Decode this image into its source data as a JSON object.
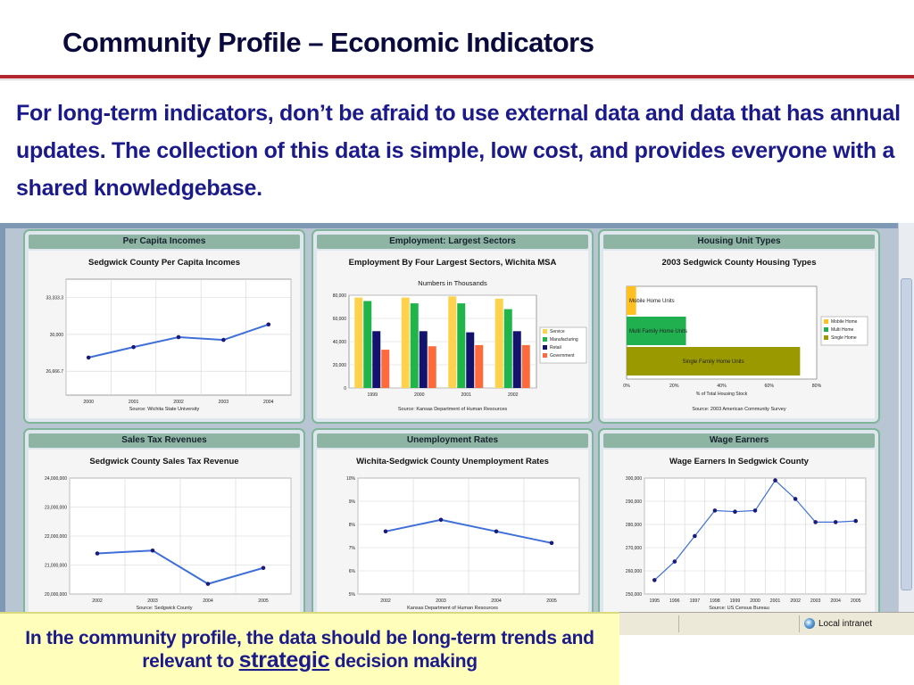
{
  "slide": {
    "title": "Community Profile – Economic Indicators",
    "intro": "For long-term indicators, don’t be afraid to use external data and data that has annual updates. The collection of this data is simple, low cost, and provides everyone with a shared knowledgebase.",
    "note_part1": "In the community profile, the data should be long-term trends and relevant to",
    "note_strategic": "strategic",
    "note_part2": "decision making"
  },
  "browser": {
    "status_zone": "Local intranet"
  },
  "colors": {
    "accent_rule": "#b3262e",
    "intro_text": "#1b1a8a",
    "panel_header": "#8eb4a4",
    "line_series": "#3f6fd8",
    "marker": "#1a1a7a",
    "service": "#ffd24d",
    "manufacturing": "#1fb54a",
    "retail": "#13136e",
    "government": "#ff6a3d",
    "housing_mobile": "#ffc020",
    "housing_multi": "#20b050",
    "housing_single": "#9a9a00"
  },
  "chart_data": [
    {
      "panel": "Per Capita Incomes",
      "title": "Sedgwick County Per Capita Incomes",
      "type": "line",
      "x": [
        "2000",
        "2001",
        "2002",
        "2003",
        "2004"
      ],
      "y": [
        27900,
        28850,
        29750,
        29500,
        30900
      ],
      "yticks": [
        26666.7,
        30000,
        33333.3
      ],
      "ytick_labels": [
        "26,666.7",
        "30,000",
        "33,333.3"
      ],
      "ylim": [
        24500,
        35000
      ],
      "source": "Source: Wichita State University"
    },
    {
      "panel": "Employment: Largest Sectors",
      "title": "Employment By Four Largest Sectors, Wichita MSA",
      "subtitle": "Numbers in Thousands",
      "type": "bar",
      "categories": [
        "1999",
        "2000",
        "2001",
        "2002"
      ],
      "series": [
        {
          "name": "Service",
          "values": [
            78,
            78,
            79,
            77
          ]
        },
        {
          "name": "Manufacturing",
          "values": [
            75,
            73,
            73,
            68
          ]
        },
        {
          "name": "Retail",
          "values": [
            49,
            49,
            48,
            49
          ]
        },
        {
          "name": "Government",
          "values": [
            33,
            36,
            37,
            37
          ]
        }
      ],
      "yticks": [
        0,
        20000,
        40000,
        60000,
        80000
      ],
      "ytick_labels": [
        "0",
        "20,000",
        "40,000",
        "60,000",
        "80,000"
      ],
      "ylim": [
        0,
        80
      ],
      "legend": "right",
      "source": "Source: Kansas Department of Human Resources"
    },
    {
      "panel": "Housing Unit Types",
      "title": "2003 Sedgwick County Housing Types",
      "type": "bar",
      "orientation": "horizontal",
      "categories": [
        "Mobile Home Units",
        "Multi Family Home Units",
        "Single Family Home Units"
      ],
      "values": [
        4,
        25,
        73
      ],
      "xticks": [
        "0%",
        "20%",
        "40%",
        "60%",
        "80%"
      ],
      "xlim": [
        0,
        80
      ],
      "xlabel": "% of Total Housing Stock",
      "legend_entries": [
        "Mobile Home",
        "Multi Home",
        "Single Home"
      ],
      "legend": "right",
      "source": "Source: 2003 American Community Survey"
    },
    {
      "panel": "Sales Tax Revenues",
      "title": "Sedgwick County Sales Tax Revenue",
      "type": "line",
      "x": [
        "2002",
        "2003",
        "2004",
        "2005"
      ],
      "y": [
        21400000,
        21500000,
        20350000,
        20900000
      ],
      "yticks": [
        20000000,
        21000000,
        22000000,
        23000000,
        24000000
      ],
      "ytick_labels": [
        "20,000,000",
        "21,000,000",
        "22,000,000",
        "23,000,000",
        "24,000,000"
      ],
      "ylim": [
        20000000,
        24000000
      ],
      "source": "Source: Sedgwick County"
    },
    {
      "panel": "Unemployment Rates",
      "title": "Wichita-Sedgwick County Unemployment Rates",
      "type": "line",
      "x": [
        "2002",
        "2003",
        "2004",
        "2005"
      ],
      "y": [
        7.7,
        8.2,
        7.7,
        7.2
      ],
      "yticks": [
        5,
        6,
        7,
        8,
        9,
        10
      ],
      "ytick_labels": [
        "5%",
        "6%",
        "7%",
        "8%",
        "9%",
        "10%"
      ],
      "ylim": [
        5,
        10
      ],
      "source": "Kansas Department of Human Resources"
    },
    {
      "panel": "Wage Earners",
      "title": "Wage Earners In Sedgwick County",
      "type": "line",
      "x": [
        "1995",
        "1996",
        "1997",
        "1998",
        "1999",
        "2000",
        "2001",
        "2002",
        "2003",
        "2004",
        "2005"
      ],
      "y": [
        256000,
        264000,
        275000,
        286000,
        285500,
        286000,
        299000,
        291000,
        281000,
        281000,
        281500
      ],
      "yticks": [
        250000,
        260000,
        270000,
        280000,
        290000,
        300000
      ],
      "ytick_labels": [
        "250,000",
        "260,000",
        "270,000",
        "280,000",
        "290,000",
        "300,000"
      ],
      "ylim": [
        250000,
        300000
      ],
      "source": "Source: US Census Bureau"
    }
  ]
}
